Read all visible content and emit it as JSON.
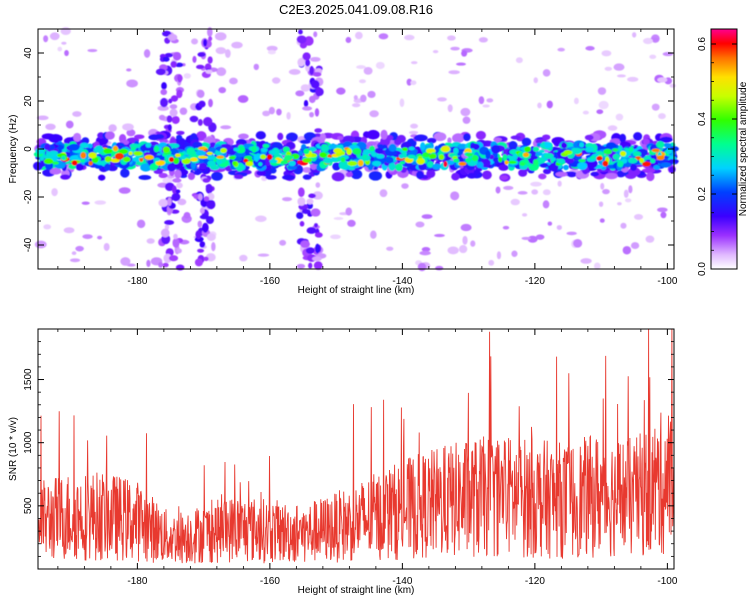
{
  "title": "C2E3.2025.041.09.08.R16",
  "chart_data": [
    {
      "type": "heatmap",
      "xlabel": "Height of straight line (km)",
      "ylabel": "Frequency (Hz)",
      "xlim": [
        -195,
        -99
      ],
      "ylim": [
        -50,
        50
      ],
      "xticks": [
        -180,
        -160,
        -140,
        -120,
        -100
      ],
      "yticks": [
        -40,
        -20,
        0,
        20,
        40
      ],
      "colorbar": {
        "label": "Normalized spectral amplitude",
        "range": [
          0,
          0.64
        ],
        "ticks": [
          0.0,
          0.2,
          0.4,
          0.6
        ]
      },
      "features": {
        "main_band_center_hz": -3,
        "main_band_halfwidth_hz": 6,
        "main_band_peak_amplitude": 0.62,
        "vertical_streaks_km": [
          -175,
          -170,
          -154
        ]
      }
    },
    {
      "type": "line",
      "xlabel": "Height of straight line (km)",
      "ylabel": "SNR (10 * v/v)",
      "xlim": [
        -195,
        -99
      ],
      "ylim": [
        0,
        1900
      ],
      "xticks": [
        -180,
        -160,
        -140,
        -120,
        -100
      ],
      "yticks": [
        500,
        1000,
        1500
      ],
      "color": "#e8392f",
      "x": [
        -195,
        -190,
        -185,
        -180,
        -175,
        -170,
        -165,
        -160,
        -155,
        -150,
        -145,
        -140,
        -135,
        -130,
        -125,
        -120,
        -115,
        -110,
        -105,
        -100
      ],
      "y": [
        380,
        420,
        420,
        380,
        240,
        280,
        320,
        300,
        280,
        330,
        400,
        470,
        520,
        560,
        580,
        560,
        540,
        590,
        560,
        700
      ]
    }
  ]
}
